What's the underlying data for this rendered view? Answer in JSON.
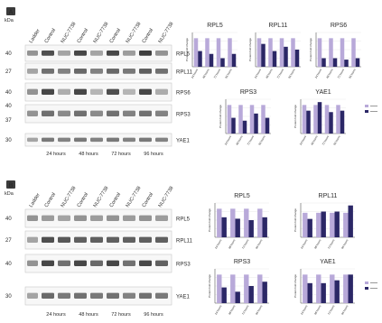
{
  "colors": {
    "control": "#b8a9d9",
    "treated": "#2b2766",
    "badge_bg": "#3b3b3b",
    "band_dark": "#3e3e3e",
    "band_mid": "#7a7a7a",
    "band_light": "#b4b4b4"
  },
  "panels": [
    {
      "badge": "A",
      "blot": {
        "kda_label": "kDa",
        "lanes": [
          "Ladder",
          "Control",
          "NUC-7738",
          "Control",
          "NUC-7738",
          "Control",
          "NUC-7738",
          "Control",
          "NUC-7738"
        ],
        "strips": [
          {
            "protein": "RPL5",
            "mw": [
              "40"
            ],
            "intensities": [
              0.4,
              0.8,
              0.3,
              0.85,
              0.3,
              0.85,
              0.35,
              0.9,
              0.4
            ]
          },
          {
            "protein": "RPL11",
            "mw": [
              "27"
            ],
            "intensities": [
              0.3,
              0.6,
              0.5,
              0.65,
              0.5,
              0.65,
              0.55,
              0.7,
              0.6
            ]
          },
          {
            "protein": "RPS6",
            "mw": [
              "40"
            ],
            "intensities": [
              0.4,
              0.85,
              0.25,
              0.85,
              0.2,
              0.8,
              0.2,
              0.85,
              0.25
            ]
          },
          {
            "protein": "RPS3",
            "mw": [
              "40",
              "37"
            ],
            "intensities": [
              0.4,
              0.6,
              0.45,
              0.6,
              0.45,
              0.6,
              0.5,
              0.6,
              0.5
            ]
          },
          {
            "protein": "YAE1",
            "mw": [
              "30"
            ],
            "intensities": [
              0.3,
              0.55,
              0.5,
              0.55,
              0.5,
              0.55,
              0.5,
              0.55,
              0.5
            ]
          }
        ],
        "timepoints": [
          "24 hours",
          "48 hours",
          "72 hours",
          "96 hours"
        ]
      }
    },
    {
      "badge": "B",
      "blot": {
        "kda_label": "kDa",
        "lanes": [
          "Ladder",
          "Control",
          "NUC-7738",
          "Control",
          "NUC-7738",
          "Control",
          "NUC-7738",
          "Control",
          "NUC-7738"
        ],
        "strips": [
          {
            "protein": "RPL5",
            "mw": [
              "40"
            ],
            "intensities": [
              0.4,
              0.35,
              0.3,
              0.4,
              0.35,
              0.4,
              0.35,
              0.4,
              0.35
            ]
          },
          {
            "protein": "RPL11",
            "mw": [
              "27"
            ],
            "intensities": [
              0.3,
              0.8,
              0.75,
              0.7,
              0.7,
              0.7,
              0.7,
              0.7,
              0.7
            ]
          },
          {
            "protein": "RPS3",
            "mw": [
              "40"
            ],
            "intensities": [
              0.4,
              0.85,
              0.6,
              0.85,
              0.65,
              0.85,
              0.6,
              0.85,
              0.7
            ]
          },
          {
            "protein": "YAE1",
            "mw": [
              "30"
            ],
            "intensities": [
              0.3,
              0.65,
              0.55,
              0.6,
              0.55,
              0.6,
              0.5,
              0.6,
              0.55
            ]
          }
        ],
        "timepoints": [
          "24 hours",
          "48 hours",
          "72 hours",
          "96 hours"
        ]
      }
    }
  ],
  "chart_data": [
    {
      "type": "bar",
      "panel": "A",
      "title": "RPL5",
      "ylabel": "Protein fold change",
      "categories": [
        "24 hours",
        "48 hours",
        "72 hours",
        "96 hours"
      ],
      "ylim": [
        0,
        1.2
      ],
      "series": [
        {
          "values": [
            1.0,
            1.0,
            1.0,
            1.0
          ]
        },
        {
          "values": [
            0.55,
            0.45,
            0.3,
            0.45
          ]
        }
      ]
    },
    {
      "type": "bar",
      "panel": "A",
      "title": "RPL11",
      "ylabel": "Protein fold change",
      "categories": [
        "24 hours",
        "48 hours",
        "72 hours",
        "96 hours"
      ],
      "ylim": [
        0,
        1.2
      ],
      "series": [
        {
          "values": [
            1.0,
            1.0,
            1.0,
            1.0
          ]
        },
        {
          "values": [
            0.8,
            0.55,
            0.7,
            0.6
          ]
        }
      ]
    },
    {
      "type": "bar",
      "panel": "A",
      "title": "RPS6",
      "ylabel": "Protein fold change",
      "categories": [
        "24 hours",
        "48 hours",
        "72 hours",
        "96 hours"
      ],
      "ylim": [
        0,
        1.2
      ],
      "series": [
        {
          "values": [
            1.0,
            1.0,
            1.0,
            1.0
          ]
        },
        {
          "values": [
            0.3,
            0.3,
            0.25,
            0.3
          ]
        }
      ]
    },
    {
      "type": "bar",
      "panel": "A",
      "title": "RPS3",
      "ylabel": "Protein fold change",
      "categories": [
        "24 hours",
        "48 hours",
        "72 hours",
        "96 hours"
      ],
      "ylim": [
        0,
        1.2
      ],
      "series": [
        {
          "values": [
            1.0,
            1.0,
            1.0,
            1.0
          ]
        },
        {
          "values": [
            0.55,
            0.45,
            0.7,
            0.55
          ]
        }
      ]
    },
    {
      "type": "bar",
      "panel": "A",
      "title": "YAE1",
      "ylabel": "Protein fold change",
      "categories": [
        "24 hours",
        "48 hours",
        "72 hours",
        "96 hours"
      ],
      "ylim": [
        0,
        1.2
      ],
      "series": [
        {
          "values": [
            1.0,
            1.0,
            1.0,
            1.0
          ]
        },
        {
          "values": [
            0.8,
            1.1,
            0.75,
            0.8
          ]
        }
      ]
    },
    {
      "type": "bar",
      "panel": "B",
      "title": "RPL5",
      "ylabel": "Protein fold change",
      "categories": [
        "24 hours",
        "48 hours",
        "72 hours",
        "96 hours"
      ],
      "ylim": [
        0,
        1.2
      ],
      "series": [
        {
          "values": [
            1.0,
            1.0,
            1.0,
            1.0
          ]
        },
        {
          "values": [
            0.7,
            0.65,
            0.6,
            0.7
          ]
        }
      ]
    },
    {
      "type": "bar",
      "panel": "B",
      "title": "RPL11",
      "ylabel": "Protein fold change",
      "categories": [
        "24 hours",
        "48 hours",
        "72 hours",
        "96 hours"
      ],
      "ylim": [
        0,
        1.4
      ],
      "series": [
        {
          "values": [
            1.0,
            1.0,
            1.0,
            1.0
          ]
        },
        {
          "values": [
            0.75,
            1.05,
            1.05,
            1.3
          ]
        }
      ]
    },
    {
      "type": "bar",
      "panel": "B",
      "title": "RPS3",
      "ylabel": "Protein fold change",
      "categories": [
        "24 hours",
        "48 hours",
        "72 hours",
        "96 hours"
      ],
      "ylim": [
        0,
        1.2
      ],
      "series": [
        {
          "values": [
            1.0,
            1.0,
            1.0,
            1.0
          ]
        },
        {
          "values": [
            0.55,
            0.4,
            0.6,
            0.75
          ]
        }
      ]
    },
    {
      "type": "bar",
      "panel": "B",
      "title": "YAE1",
      "ylabel": "Protein fold change",
      "categories": [
        "24 hours",
        "48 hours",
        "72 hours",
        "96 hours"
      ],
      "ylim": [
        0,
        1.2
      ],
      "series": [
        {
          "values": [
            1.0,
            1.0,
            1.0,
            1.0
          ]
        },
        {
          "values": [
            0.7,
            0.7,
            0.8,
            1.0
          ]
        }
      ]
    }
  ]
}
